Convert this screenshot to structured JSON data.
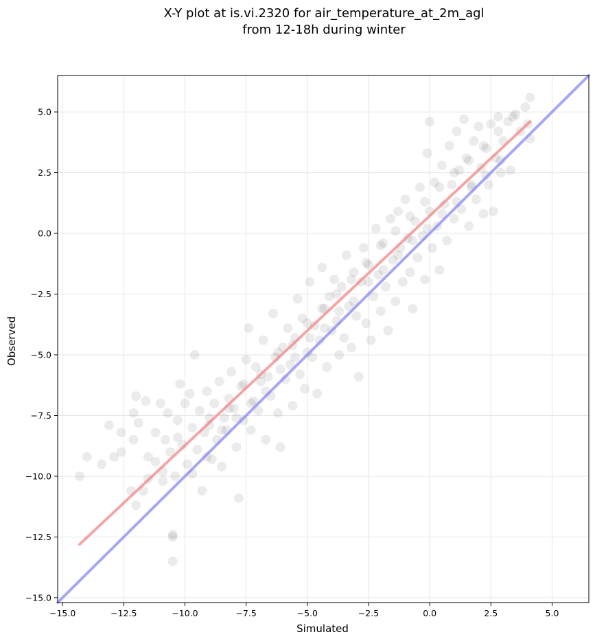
{
  "chart_data": {
    "type": "scatter",
    "title_line1": "X-Y plot at is.vi.2320 for air_temperature_at_2m_agl",
    "title_line2": "from 12-18h during winter",
    "xlabel": "Simulated",
    "ylabel": "Observed",
    "xlim": [
      -15.2,
      6.5
    ],
    "ylim": [
      -15.2,
      6.5
    ],
    "x_ticks": [
      -15.0,
      -12.5,
      -10.0,
      -7.5,
      -5.0,
      -2.5,
      0.0,
      2.5,
      5.0
    ],
    "y_ticks": [
      -15.0,
      -12.5,
      -10.0,
      -7.5,
      -5.0,
      -2.5,
      0.0,
      2.5,
      5.0
    ],
    "x_tick_labels": [
      "−15.0",
      "−12.5",
      "−10.0",
      "−7.5",
      "−5.0",
      "−2.5",
      "0.0",
      "2.5",
      "5.0"
    ],
    "y_tick_labels": [
      "−15.0",
      "−12.5",
      "−10.0",
      "−7.5",
      "−5.0",
      "−2.5",
      "0.0",
      "2.5",
      "5.0"
    ],
    "grid": true,
    "marker_color": "#000000",
    "marker_alpha": 0.08,
    "regression_line": {
      "color": "#f08080",
      "x": [
        -14.3,
        4.1
      ],
      "y": [
        -12.8,
        4.6
      ]
    },
    "identity_line": {
      "color": "#8080f0",
      "x": [
        -15.2,
        6.5
      ],
      "y": [
        -15.2,
        6.5
      ]
    },
    "points": [
      [
        -14.3,
        -10.0
      ],
      [
        -14.0,
        -9.2
      ],
      [
        -13.4,
        -9.5
      ],
      [
        -13.1,
        -7.9
      ],
      [
        -12.9,
        -9.2
      ],
      [
        -12.6,
        -8.2
      ],
      [
        -12.6,
        -9.0
      ],
      [
        -12.2,
        -10.6
      ],
      [
        -12.1,
        -8.5
      ],
      [
        -12.1,
        -7.4
      ],
      [
        -12.0,
        -6.7
      ],
      [
        -11.9,
        -7.8
      ],
      [
        -11.7,
        -10.6
      ],
      [
        -11.6,
        -6.9
      ],
      [
        -11.5,
        -9.2
      ],
      [
        -11.2,
        -9.4
      ],
      [
        -11.2,
        -8.2
      ],
      [
        -11.0,
        -7.0
      ],
      [
        -10.9,
        -9.8
      ],
      [
        -10.8,
        -8.5
      ],
      [
        -10.7,
        -7.4
      ],
      [
        -10.6,
        -9.0
      ],
      [
        -10.5,
        -12.4
      ],
      [
        -10.5,
        -12.5
      ],
      [
        -10.5,
        -13.5
      ],
      [
        -10.4,
        -10.0
      ],
      [
        -10.3,
        -7.7
      ],
      [
        -10.2,
        -6.2
      ],
      [
        -10.1,
        -8.7
      ],
      [
        -10.0,
        -7.0
      ],
      [
        -9.9,
        -9.5
      ],
      [
        -9.8,
        -6.6
      ],
      [
        -9.7,
        -8.0
      ],
      [
        -9.6,
        -5.0
      ],
      [
        -9.5,
        -8.9
      ],
      [
        -9.4,
        -7.3
      ],
      [
        -9.3,
        -10.6
      ],
      [
        -9.2,
        -8.2
      ],
      [
        -9.1,
        -6.5
      ],
      [
        -9.0,
        -7.9
      ],
      [
        -8.9,
        -9.3
      ],
      [
        -8.8,
        -7.0
      ],
      [
        -8.7,
        -8.5
      ],
      [
        -8.6,
        -6.1
      ],
      [
        -8.5,
        -9.6
      ],
      [
        -8.4,
        -7.6
      ],
      [
        -8.3,
        -8.1
      ],
      [
        -8.2,
        -6.8
      ],
      [
        -8.1,
        -5.7
      ],
      [
        -8.0,
        -7.2
      ],
      [
        -7.9,
        -8.8
      ],
      [
        -7.8,
        -10.9
      ],
      [
        -7.7,
        -6.3
      ],
      [
        -7.6,
        -7.7
      ],
      [
        -7.5,
        -5.2
      ],
      [
        -7.4,
        -3.9
      ],
      [
        -7.3,
        -8.1
      ],
      [
        -7.2,
        -6.9
      ],
      [
        -7.1,
        -5.5
      ],
      [
        -7.0,
        -7.3
      ],
      [
        -6.9,
        -6.1
      ],
      [
        -6.8,
        -4.4
      ],
      [
        -6.7,
        -8.5
      ],
      [
        -6.6,
        -5.9
      ],
      [
        -6.5,
        -6.7
      ],
      [
        -6.4,
        -3.3
      ],
      [
        -6.3,
        -5.1
      ],
      [
        -6.2,
        -7.4
      ],
      [
        -6.1,
        -8.8
      ],
      [
        -6.0,
        -4.7
      ],
      [
        -5.9,
        -6.0
      ],
      [
        -5.8,
        -3.9
      ],
      [
        -5.7,
        -5.4
      ],
      [
        -5.6,
        -7.1
      ],
      [
        -5.5,
        -4.3
      ],
      [
        -5.4,
        -2.7
      ],
      [
        -5.3,
        -5.8
      ],
      [
        -5.2,
        -3.5
      ],
      [
        -5.1,
        -6.4
      ],
      [
        -5.0,
        -4.9
      ],
      [
        -4.9,
        -2.0
      ],
      [
        -4.8,
        -5.1
      ],
      [
        -4.7,
        -3.8
      ],
      [
        -4.6,
        -6.6
      ],
      [
        -4.5,
        -4.4
      ],
      [
        -4.4,
        -1.4
      ],
      [
        -4.3,
        -3.1
      ],
      [
        -4.2,
        -5.5
      ],
      [
        -4.1,
        -2.6
      ],
      [
        -4.0,
        -4.0
      ],
      [
        -3.9,
        -1.9
      ],
      [
        -3.8,
        -3.6
      ],
      [
        -3.7,
        -5.0
      ],
      [
        -3.6,
        -2.2
      ],
      [
        -3.5,
        -4.3
      ],
      [
        -3.4,
        -0.9
      ],
      [
        -3.3,
        -3.0
      ],
      [
        -3.2,
        -4.7
      ],
      [
        -3.1,
        -1.6
      ],
      [
        -3.0,
        -3.4
      ],
      [
        -2.9,
        -5.9
      ],
      [
        -2.8,
        -2.0
      ],
      [
        -2.7,
        -0.6
      ],
      [
        -2.6,
        -3.7
      ],
      [
        -2.5,
        -1.3
      ],
      [
        -2.4,
        -4.4
      ],
      [
        -2.3,
        -2.6
      ],
      [
        -2.2,
        0.2
      ],
      [
        -2.1,
        -1.7
      ],
      [
        -2.0,
        -3.2
      ],
      [
        -1.9,
        -0.4
      ],
      [
        -1.8,
        -2.2
      ],
      [
        -1.7,
        -4.0
      ],
      [
        -1.6,
        0.6
      ],
      [
        -1.5,
        -1.1
      ],
      [
        -1.4,
        -2.8
      ],
      [
        -1.3,
        0.9
      ],
      [
        -1.2,
        -0.6
      ],
      [
        -1.1,
        -2.0
      ],
      [
        -1.0,
        1.4
      ],
      [
        -0.9,
        -0.2
      ],
      [
        -0.8,
        -1.6
      ],
      [
        -0.7,
        -3.1
      ],
      [
        -0.6,
        0.5
      ],
      [
        -0.5,
        -1.0
      ],
      [
        -0.4,
        1.9
      ],
      [
        -0.3,
        -0.1
      ],
      [
        -0.2,
        -1.9
      ],
      [
        -0.1,
        3.3
      ],
      [
        0.0,
        4.6
      ],
      [
        0.0,
        0.9
      ],
      [
        0.1,
        -0.6
      ],
      [
        0.2,
        2.1
      ],
      [
        0.3,
        0.3
      ],
      [
        0.4,
        -1.5
      ],
      [
        0.5,
        2.8
      ],
      [
        0.6,
        1.2
      ],
      [
        0.7,
        -0.3
      ],
      [
        0.8,
        3.6
      ],
      [
        0.9,
        2.0
      ],
      [
        1.0,
        0.6
      ],
      [
        1.1,
        4.2
      ],
      [
        1.2,
        2.6
      ],
      [
        1.3,
        1.0
      ],
      [
        1.4,
        4.7
      ],
      [
        1.5,
        3.1
      ],
      [
        1.6,
        0.3
      ],
      [
        1.7,
        2.0
      ],
      [
        1.8,
        3.8
      ],
      [
        1.9,
        1.4
      ],
      [
        2.0,
        4.4
      ],
      [
        2.1,
        2.7
      ],
      [
        2.2,
        0.8
      ],
      [
        2.3,
        3.5
      ],
      [
        2.4,
        2.0
      ],
      [
        2.5,
        4.5
      ],
      [
        2.6,
        0.9
      ],
      [
        2.7,
        3.1
      ],
      [
        2.8,
        4.8
      ],
      [
        2.9,
        2.5
      ],
      [
        3.0,
        3.8
      ],
      [
        3.2,
        4.6
      ],
      [
        3.3,
        2.6
      ],
      [
        3.5,
        4.9
      ],
      [
        3.7,
        4.2
      ],
      [
        3.9,
        5.2
      ],
      [
        4.0,
        4.5
      ],
      [
        4.1,
        3.9
      ],
      [
        4.1,
        5.6
      ],
      [
        -12.0,
        -11.2
      ],
      [
        -11.5,
        -10.1
      ],
      [
        -10.9,
        -10.2
      ],
      [
        -10.3,
        -8.4
      ],
      [
        -9.7,
        -9.9
      ],
      [
        -9.1,
        -9.2
      ],
      [
        -8.5,
        -8.1
      ],
      [
        -7.9,
        -7.6
      ],
      [
        -7.3,
        -7.0
      ],
      [
        -6.7,
        -6.5
      ],
      [
        -6.1,
        -5.6
      ],
      [
        -5.5,
        -5.1
      ],
      [
        -4.9,
        -4.3
      ],
      [
        -4.3,
        -3.9
      ],
      [
        -3.7,
        -3.2
      ],
      [
        -3.1,
        -2.8
      ],
      [
        -2.5,
        -2.0
      ],
      [
        -1.9,
        -1.5
      ],
      [
        -1.3,
        -0.9
      ],
      [
        -0.7,
        -0.3
      ],
      [
        -0.1,
        0.2
      ],
      [
        0.5,
        0.8
      ],
      [
        1.1,
        1.3
      ],
      [
        1.7,
        1.9
      ],
      [
        2.3,
        2.4
      ],
      [
        2.9,
        3.0
      ],
      [
        -9.0,
        -7.6
      ],
      [
        -8.2,
        -7.2
      ],
      [
        -7.6,
        -6.2
      ],
      [
        -6.9,
        -5.8
      ],
      [
        -6.2,
        -4.9
      ],
      [
        -5.6,
        -4.6
      ],
      [
        -5.0,
        -3.7
      ],
      [
        -4.4,
        -3.1
      ],
      [
        -3.8,
        -2.5
      ],
      [
        -3.2,
        -1.9
      ],
      [
        -2.6,
        -1.2
      ],
      [
        -2.0,
        -0.5
      ],
      [
        -1.4,
        0.1
      ],
      [
        -0.8,
        0.7
      ],
      [
        -0.2,
        1.3
      ],
      [
        0.4,
        1.9
      ],
      [
        1.0,
        2.5
      ],
      [
        1.6,
        3.0
      ],
      [
        2.2,
        3.6
      ],
      [
        2.8,
        4.2
      ],
      [
        3.4,
        4.8
      ]
    ]
  }
}
